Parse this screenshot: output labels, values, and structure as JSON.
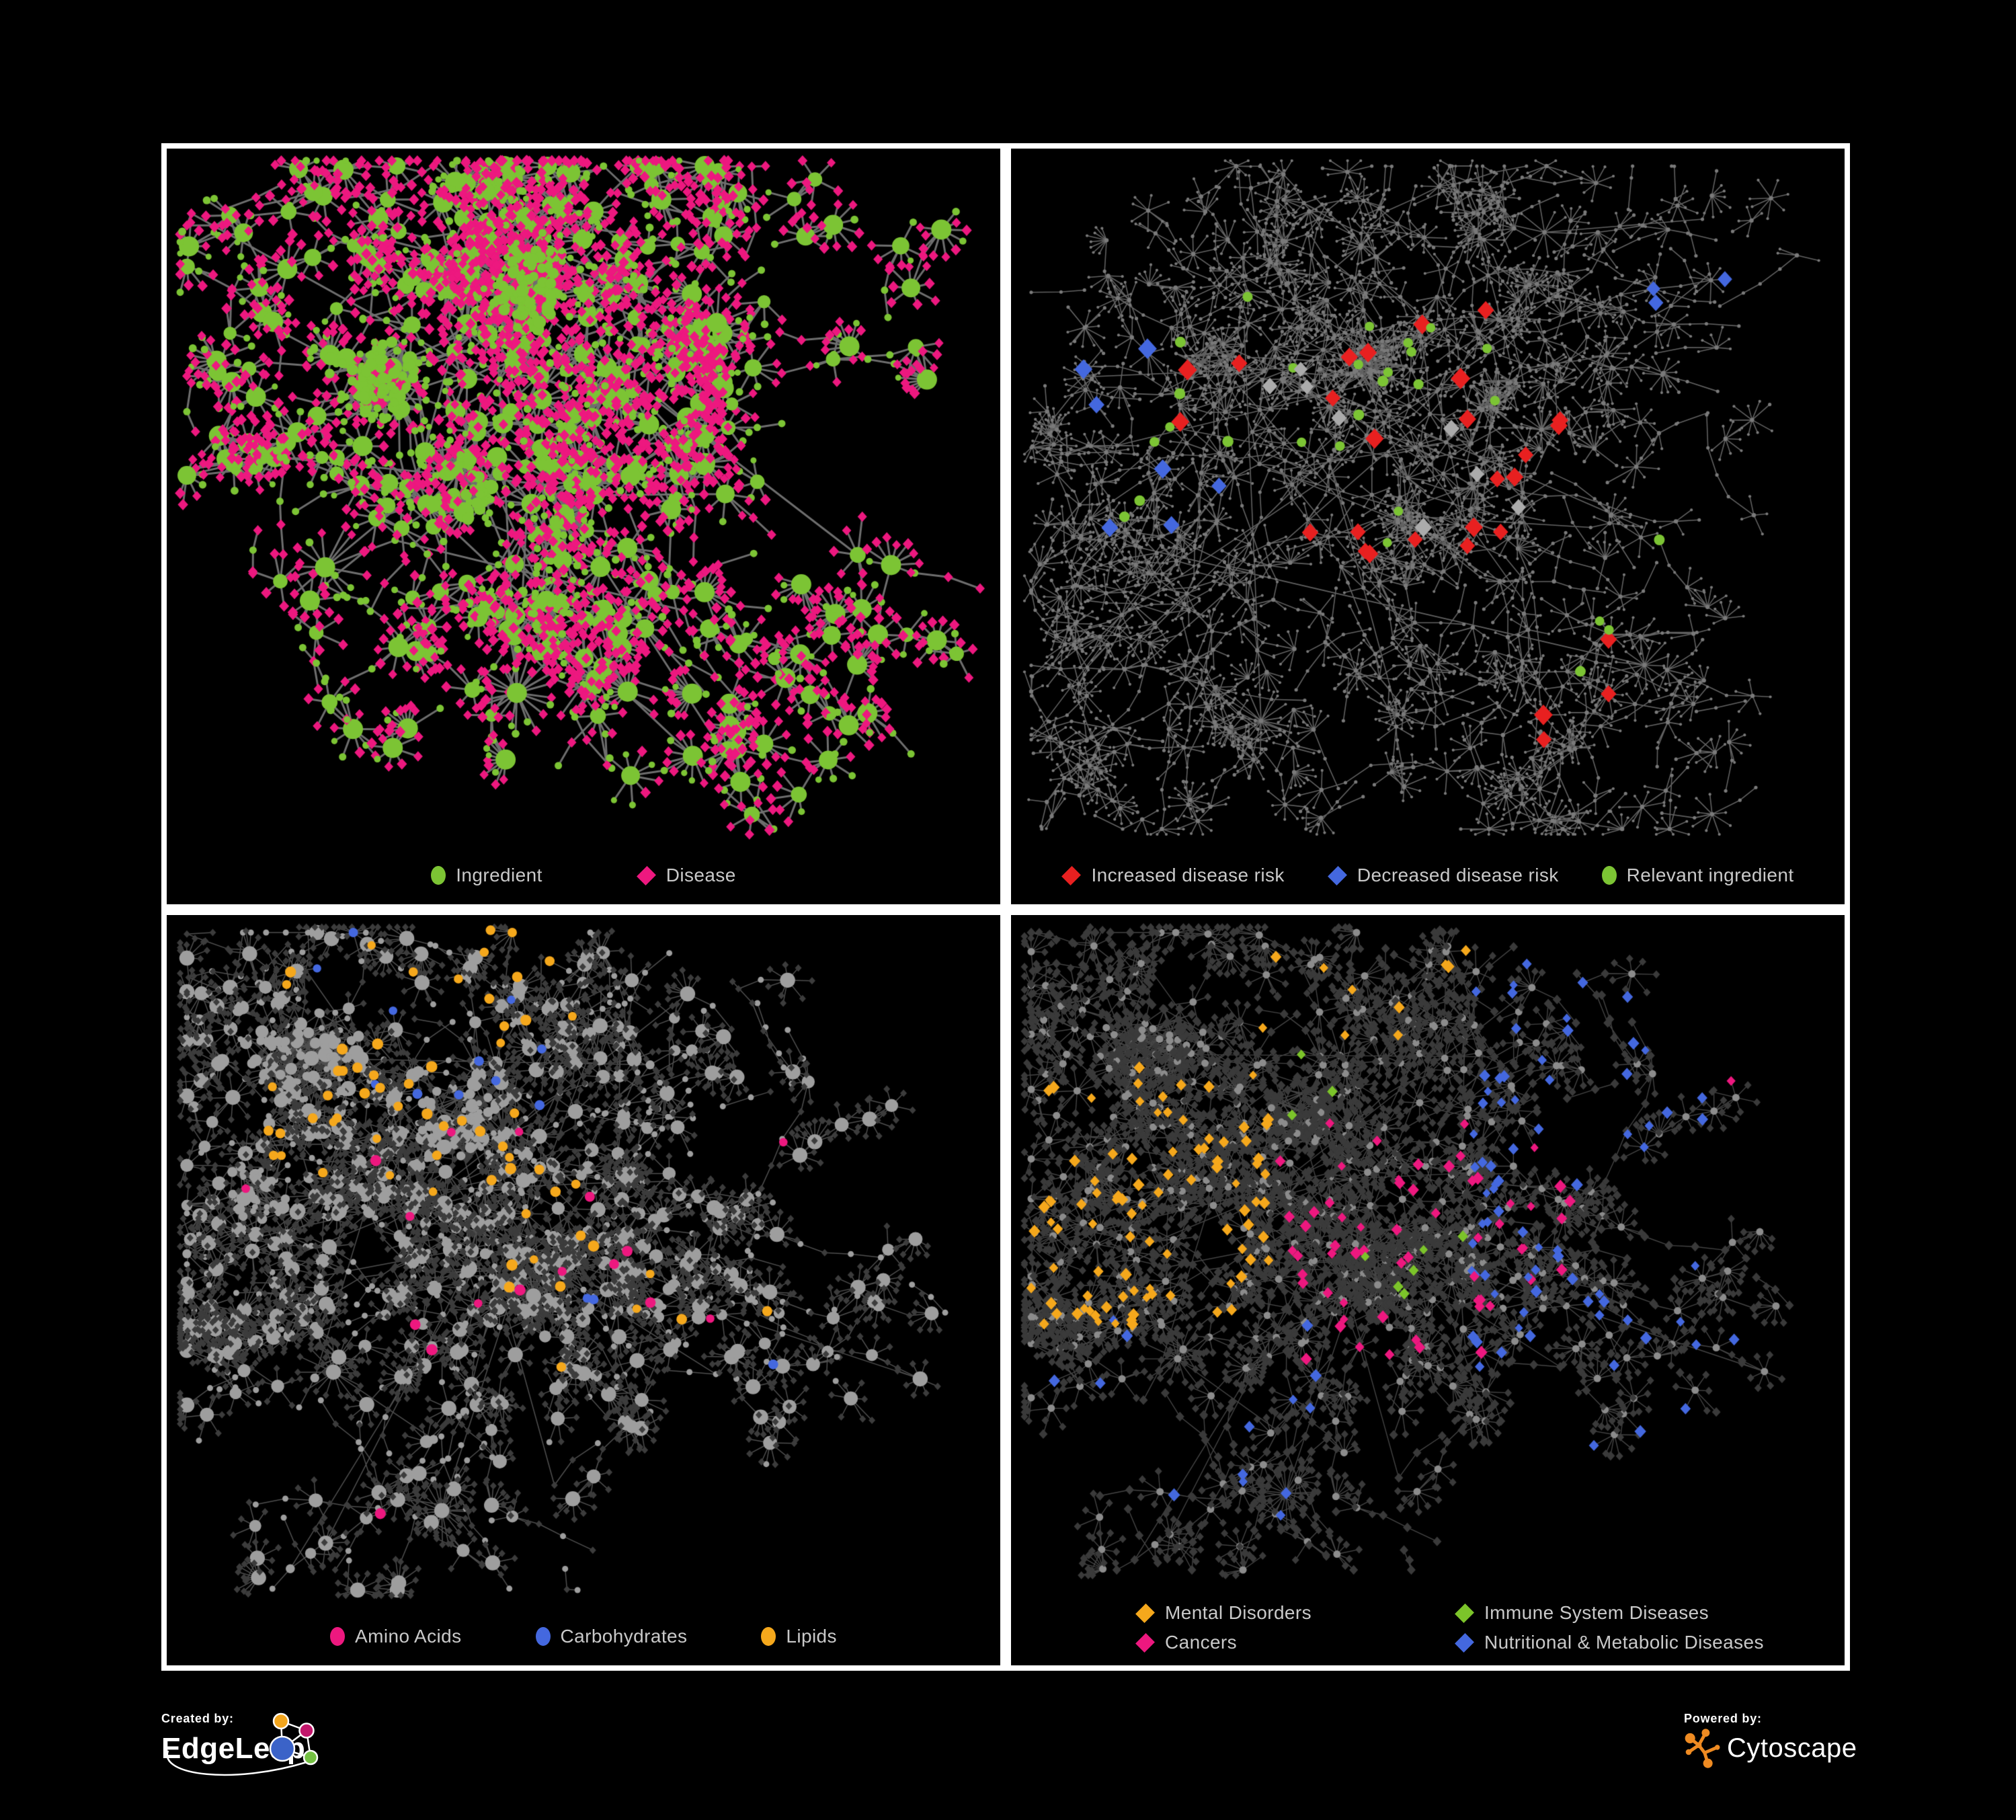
{
  "page": {
    "background": "#000000",
    "panel_border": "#ffffff"
  },
  "panels": [
    {
      "name": "ingredient-disease-network",
      "legend": {
        "items": [
          {
            "label": "Ingredient",
            "shape": "circle",
            "color": "#7CC434"
          },
          {
            "label": "Disease",
            "shape": "diamond",
            "color": "#ED187F"
          }
        ]
      },
      "network": {
        "seed": 11,
        "branches": 16,
        "steps": [
          5,
          10
        ],
        "stepLen": [
          30,
          58
        ],
        "curl": 1.0,
        "branchProb": 0.3,
        "maxDepth": 3,
        "starProb": 0.32,
        "leaves": [
          4,
          11
        ],
        "leafDist": 34,
        "bigstars": [
          [
            0.42,
            0.78,
            22
          ],
          [
            0.19,
            0.6,
            14
          ],
          [
            0.66,
            0.25,
            12
          ]
        ],
        "hairballs": [
          [
            0.26,
            0.33,
            70,
            85,
            "green2"
          ],
          [
            0.43,
            0.2,
            60,
            70,
            "green"
          ],
          [
            0.36,
            0.5,
            34,
            60,
            null
          ]
        ],
        "edge": {
          "color": "#7D7D7D",
          "width": 3.0,
          "alpha": 0.88
        },
        "paint": {
          "mode": "p1",
          "green": "#7CC434",
          "pink": "#ED187F"
        },
        "highlights": []
      }
    },
    {
      "name": "disease-risk-network",
      "legend": {
        "items": [
          {
            "label": "Increased disease risk",
            "shape": "diamond",
            "color": "#E82020"
          },
          {
            "label": "Decreased disease risk",
            "shape": "diamond",
            "color": "#4468DF"
          },
          {
            "label": "Relevant ingredient",
            "shape": "circle",
            "color": "#7CC434"
          }
        ]
      },
      "network": {
        "seed": 23,
        "branches": 24,
        "steps": [
          6,
          13
        ],
        "stepLen": [
          26,
          50
        ],
        "curl": 1.05,
        "branchProb": 0.3,
        "maxDepth": 3,
        "starProb": 0.36,
        "leaves": [
          3,
          8
        ],
        "leafDist": 26,
        "bigstars": [
          [
            0.3,
            0.82,
            18
          ],
          [
            0.76,
            0.74,
            14
          ],
          [
            0.64,
            0.12,
            10
          ]
        ],
        "hairballs": [
          [
            0.44,
            0.3,
            55,
            75,
            null
          ],
          [
            0.24,
            0.3,
            40,
            60,
            null
          ],
          [
            0.58,
            0.35,
            26,
            45,
            null
          ]
        ],
        "edge": {
          "color": "#8C8C8C",
          "width": 1.6,
          "alpha": 0.7
        },
        "paint": {
          "mode": "p2",
          "dot": "#7A7A7A"
        },
        "highlights": [
          {
            "shape": "diamond",
            "color": "#E82020",
            "count": 24,
            "size": [
              11,
              15
            ],
            "region": [
              0.18,
              0.22,
              0.68,
              0.6
            ]
          },
          {
            "shape": "diamond",
            "color": "#E82020",
            "count": 4,
            "size": [
              11,
              14
            ],
            "region": [
              0.55,
              0.68,
              0.75,
              0.85
            ]
          },
          {
            "shape": "diamond",
            "color": "#4468DF",
            "count": 7,
            "size": [
              11,
              14
            ],
            "region": [
              0.08,
              0.28,
              0.28,
              0.55
            ]
          },
          {
            "shape": "diamond",
            "color": "#4468DF",
            "count": 3,
            "size": [
              10,
              12
            ],
            "region": [
              0.76,
              0.14,
              0.92,
              0.24
            ]
          },
          {
            "shape": "diamond",
            "color": "#ABABAB",
            "count": 8,
            "size": [
              10,
              13
            ],
            "region": [
              0.12,
              0.25,
              0.62,
              0.58
            ]
          },
          {
            "shape": "circle",
            "color": "#7CC434",
            "count": 24,
            "size": [
              8,
              10
            ],
            "region": [
              0.08,
              0.2,
              0.6,
              0.6
            ]
          },
          {
            "shape": "circle",
            "color": "#7CC434",
            "count": 4,
            "size": [
              8,
              10
            ],
            "region": [
              0.6,
              0.55,
              0.85,
              0.75
            ]
          }
        ]
      }
    },
    {
      "name": "macronutrient-network",
      "legend": {
        "items": [
          {
            "label": "Amino Acids",
            "shape": "circle",
            "color": "#ED187F"
          },
          {
            "label": "Carbohydrates",
            "shape": "circle",
            "color": "#4468DF"
          },
          {
            "label": "Lipids",
            "shape": "circle",
            "color": "#F5A81C"
          }
        ]
      },
      "network": {
        "seed": 77,
        "branches": 20,
        "steps": [
          6,
          12
        ],
        "stepLen": [
          26,
          50
        ],
        "curl": 1.0,
        "branchProb": 0.32,
        "maxDepth": 3,
        "starProb": 0.34,
        "leaves": [
          4,
          10
        ],
        "leafDist": 28,
        "bigstars": [
          [
            0.44,
            0.55,
            32
          ],
          [
            0.33,
            0.86,
            22
          ],
          [
            0.2,
            0.66,
            15
          ],
          [
            0.52,
            0.16,
            12
          ]
        ],
        "hairballs": [
          [
            0.17,
            0.2,
            85,
            95,
            null
          ],
          [
            0.35,
            0.3,
            60,
            75,
            null
          ],
          [
            0.11,
            0.4,
            40,
            60,
            null
          ]
        ],
        "edge": {
          "color": "#9E9E9E",
          "width": 1.5,
          "alpha": 0.5
        },
        "paint": {
          "mode": "p3",
          "light": "#9E9E9E",
          "dark": "#3C3C3C"
        },
        "highlights": [
          {
            "shape": "circle",
            "color": "#F5A81C",
            "count": 48,
            "size": [
              7,
              10
            ],
            "region": [
              0.12,
              0.02,
              0.52,
              0.38
            ]
          },
          {
            "shape": "circle",
            "color": "#F5A81C",
            "count": 16,
            "size": [
              7,
              10
            ],
            "region": [
              0.25,
              0.38,
              0.75,
              0.72
            ]
          },
          {
            "shape": "circle",
            "color": "#4468DF",
            "count": 11,
            "size": [
              7,
              9
            ],
            "region": [
              0.18,
              0.02,
              0.45,
              0.3
            ]
          },
          {
            "shape": "circle",
            "color": "#4468DF",
            "count": 3,
            "size": [
              7,
              9
            ],
            "region": [
              0.5,
              0.5,
              0.75,
              0.65
            ]
          },
          {
            "shape": "circle",
            "color": "#ED187F",
            "count": 17,
            "size": [
              7,
              10
            ],
            "region": [
              0.05,
              0.3,
              0.75,
              0.92
            ]
          }
        ]
      }
    },
    {
      "name": "disease-category-network",
      "legend": {
        "rows": 2,
        "items": [
          {
            "label": "Mental Disorders",
            "shape": "diamond",
            "color": "#F5A81C"
          },
          {
            "label": "Immune System Diseases",
            "shape": "diamond",
            "color": "#7CC42A"
          },
          {
            "label": "Cancers",
            "shape": "diamond",
            "color": "#ED187F"
          },
          {
            "label": "Nutritional & Metabolic Diseases",
            "shape": "diamond",
            "color": "#4468DF"
          }
        ]
      },
      "network": {
        "seed": 77,
        "branches": 20,
        "steps": [
          6,
          12
        ],
        "stepLen": [
          26,
          50
        ],
        "curl": 1.0,
        "branchProb": 0.32,
        "maxDepth": 3,
        "starProb": 0.34,
        "leaves": [
          4,
          10
        ],
        "leafDist": 28,
        "bigstars": [
          [
            0.44,
            0.55,
            32
          ],
          [
            0.33,
            0.86,
            22
          ],
          [
            0.2,
            0.66,
            15
          ],
          [
            0.52,
            0.16,
            12
          ]
        ],
        "hairballs": [
          [
            0.17,
            0.2,
            85,
            95,
            null
          ],
          [
            0.35,
            0.3,
            60,
            75,
            null
          ],
          [
            0.11,
            0.4,
            40,
            60,
            null
          ]
        ],
        "edge": {
          "color": "#9A9A9A",
          "width": 1.4,
          "alpha": 0.45
        },
        "paint": {
          "mode": "p4",
          "dark": "#3A3A3A",
          "hub": "#8C8C8C"
        },
        "highlights": [
          {
            "shape": "diamond",
            "color": "#F5A81C",
            "count": 90,
            "size": [
              6,
              9
            ],
            "region": [
              0.02,
              0.22,
              0.32,
              0.62
            ]
          },
          {
            "shape": "diamond",
            "color": "#F5A81C",
            "count": 10,
            "size": [
              6,
              9
            ],
            "region": [
              0.3,
              0.02,
              0.6,
              0.2
            ]
          },
          {
            "shape": "diamond",
            "color": "#ED187F",
            "count": 60,
            "size": [
              6,
              9
            ],
            "region": [
              0.32,
              0.3,
              0.68,
              0.68
            ]
          },
          {
            "shape": "diamond",
            "color": "#ED187F",
            "count": 8,
            "size": [
              6,
              9
            ],
            "region": [
              0.85,
              0.1,
              0.98,
              0.25
            ]
          },
          {
            "shape": "diamond",
            "color": "#4468DF",
            "count": 45,
            "size": [
              6,
              9
            ],
            "region": [
              0.55,
              0.35,
              0.95,
              0.85
            ]
          },
          {
            "shape": "diamond",
            "color": "#4468DF",
            "count": 30,
            "size": [
              6,
              9
            ],
            "region": [
              0.55,
              0.02,
              0.98,
              0.35
            ]
          },
          {
            "shape": "diamond",
            "color": "#4468DF",
            "count": 14,
            "size": [
              6,
              9
            ],
            "region": [
              0.05,
              0.6,
              0.4,
              0.92
            ]
          },
          {
            "shape": "diamond",
            "color": "#7CC42A",
            "count": 9,
            "size": [
              6,
              8
            ],
            "region": [
              0.25,
              0.2,
              0.62,
              0.62
            ]
          }
        ]
      }
    }
  ],
  "footer": {
    "created_by": {
      "label": "Created by:",
      "brand": "EdgeLeap"
    },
    "powered_by": {
      "label": "Powered by:",
      "brand": "Cytoscape",
      "accent": "#EF8B22"
    },
    "edgeleap_logo_colors": {
      "orange": "#F2A51D",
      "magenta": "#C2166B",
      "blue": "#3B63C8",
      "green": "#74C042"
    }
  }
}
